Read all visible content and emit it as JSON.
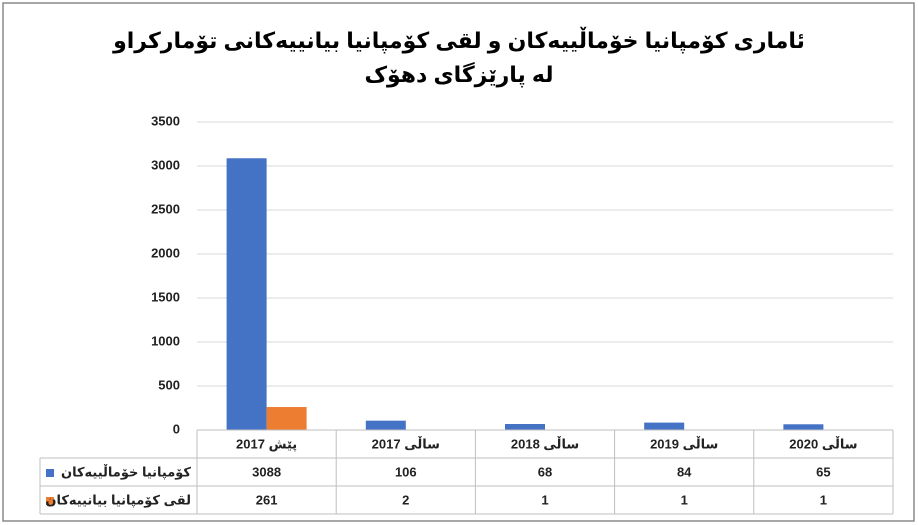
{
  "chart_data": {
    "type": "bar",
    "title": [
      "ئاماری کۆمپانیا خۆماڵییەکان و لقی کۆمپانیا بیانییەکانی تۆمارکراو",
      "لە پارێزگای دهۆک"
    ],
    "categories": [
      "پێش 2017",
      "ساڵی 2017",
      "ساڵی 2018",
      "ساڵی 2019",
      "ساڵی 2020"
    ],
    "series": [
      {
        "name": "کۆمپانیا خۆماڵییەکان",
        "color": "#4472c4",
        "values": [
          3088,
          106,
          68,
          84,
          65
        ]
      },
      {
        "name": "لقی کۆمپانیا بیانییەکان",
        "color": "#ed7d31",
        "values": [
          261,
          2,
          1,
          1,
          1
        ]
      }
    ],
    "ylim": [
      0,
      3500
    ],
    "yticks": [
      0,
      500,
      1000,
      1500,
      2000,
      2500,
      3000,
      3500
    ],
    "grid": true
  }
}
